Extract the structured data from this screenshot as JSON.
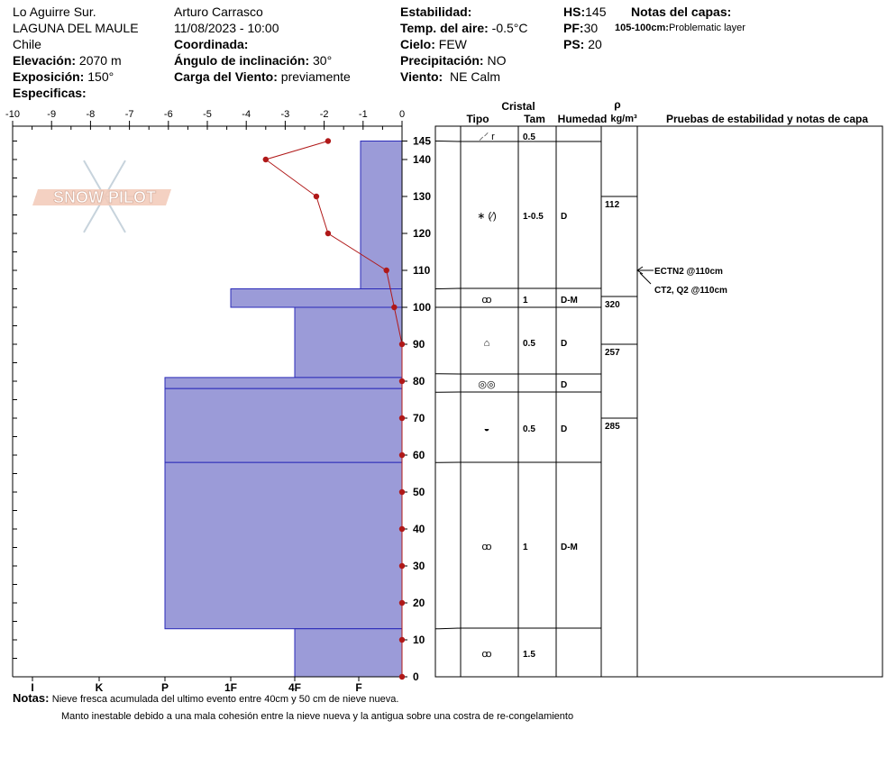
{
  "header": {
    "col1": {
      "location": "Lo Aguirre Sur.",
      "range": "LAGUNA DEL MAULE",
      "country": "Chile",
      "elevation_label": "Elevación:",
      "elevation": "2070 m",
      "aspect_label": "Exposición:",
      "aspect": "150°",
      "specifics_label": "Especificas:"
    },
    "col2": {
      "observer": "Arturo Carrasco",
      "datetime": "11/08/2023 - 10:00",
      "coord_label": "Coordinada:",
      "slope_label": "Ángulo de inclinación:",
      "slope": "30°",
      "wind_load_label": "Carga del Viento:",
      "wind_load": "previamente"
    },
    "col3": {
      "stability_label": "Estabilidad:",
      "air_temp_label": "Temp. del aire:",
      "air_temp": "-0.5°C",
      "sky_label": "Cielo:",
      "sky": "FEW",
      "precip_label": "Precipitación:",
      "precip": "NO",
      "wind_label": "Viento:",
      "wind": "NE Calm"
    },
    "col4": {
      "hs_label": "HS:",
      "hs": "145",
      "pf_label": "PF:",
      "pf": "30",
      "ps_label": "PS:",
      "ps": "20"
    },
    "layer_notes": {
      "title": "Notas del capas:",
      "range": "105-100cm:",
      "text": "Problematic layer"
    }
  },
  "logo": {
    "text": "SNOW PILOT"
  },
  "table_headers": {
    "cristal": "Cristal",
    "tipo": "Tipo",
    "tam": "Tam",
    "humedad": "Humedad",
    "rho": "ρ",
    "density_unit": "kg/m³",
    "tests": "Pruebas de estabilidad y notas de capa"
  },
  "notes": {
    "label": "Notas:",
    "line1": "Nieve fresca acumulada del ultimo evento entre 40cm  y 50 cm de nieve nueva.",
    "line2": "Manto inestable debido a una mala cohesión entre la nieve nueva y la antigua sobre una costra de re-congelamiento"
  },
  "chart_data": {
    "type": "snow-profile",
    "temperature_axis": {
      "ticks": [
        "-10",
        "-9",
        "-8",
        "-7",
        "-6",
        "-5",
        "-4",
        "-3",
        "-2",
        "-1",
        "0"
      ],
      "range": [
        -10,
        0
      ]
    },
    "hardness_axis": {
      "ticks": [
        "I",
        "K",
        "P",
        "1F",
        "4F",
        "F"
      ]
    },
    "height_axis": {
      "ticks": [
        "145",
        "140",
        "130",
        "120",
        "110",
        "100",
        "90",
        "80",
        "70",
        "60",
        "50",
        "40",
        "30",
        "20",
        "10",
        "0"
      ],
      "range": [
        0,
        145
      ]
    },
    "temperature_profile": [
      {
        "h": 145,
        "t": -1.9
      },
      {
        "h": 140,
        "t": -3.5
      },
      {
        "h": 130,
        "t": -2.2
      },
      {
        "h": 120,
        "t": -1.9
      },
      {
        "h": 110,
        "t": -0.4
      },
      {
        "h": 100,
        "t": -0.2
      },
      {
        "h": 90,
        "t": 0
      },
      {
        "h": 80,
        "t": 0
      },
      {
        "h": 70,
        "t": 0
      },
      {
        "h": 60,
        "t": 0
      },
      {
        "h": 50,
        "t": 0
      },
      {
        "h": 40,
        "t": 0
      },
      {
        "h": 30,
        "t": 0
      },
      {
        "h": 20,
        "t": 0
      },
      {
        "h": 10,
        "t": 0
      },
      {
        "h": 0,
        "t": 0
      }
    ],
    "hardness_layers": [
      {
        "top": 145,
        "bottom": 105,
        "hardness": "F"
      },
      {
        "top": 105,
        "bottom": 100,
        "hardness": "4F+"
      },
      {
        "top": 100,
        "bottom": 81,
        "hardness": "4F"
      },
      {
        "top": 81,
        "bottom": 78,
        "hardness": "P"
      },
      {
        "top": 78,
        "bottom": 58,
        "hardness": "P"
      },
      {
        "top": 58,
        "bottom": 13,
        "hardness": "P"
      },
      {
        "top": 13,
        "bottom": 0,
        "hardness": "4F"
      }
    ],
    "layers": [
      {
        "top": 145,
        "bottom": 145,
        "tipo": "⸝⸍ r",
        "tam": "0.5",
        "humedad": "",
        "density": ""
      },
      {
        "top": 145,
        "bottom": 105,
        "tipo": "∗ (⁄)",
        "tam": "1-0.5",
        "humedad": "D",
        "density": ""
      },
      {
        "top": 105,
        "bottom": 100,
        "tipo": "ꝏ",
        "tam": "1",
        "humedad": "D-M",
        "density": ""
      },
      {
        "top": 100,
        "bottom": 82,
        "tipo": "⌂",
        "tam": "0.5",
        "humedad": "D",
        "density": ""
      },
      {
        "top": 82,
        "bottom": 77,
        "tipo": "◎◎",
        "tam": "",
        "humedad": "D",
        "density": ""
      },
      {
        "top": 77,
        "bottom": 58,
        "tipo": "◒",
        "tam": "0.5",
        "humedad": "D",
        "density": ""
      },
      {
        "top": 58,
        "bottom": 13,
        "tipo": "ꝏ",
        "tam": "1",
        "humedad": "D-M",
        "density": ""
      },
      {
        "top": 13,
        "bottom": 0,
        "tipo": "ꝏ",
        "tam": "1.5",
        "humedad": "",
        "density": ""
      }
    ],
    "densities": [
      {
        "top": 130,
        "bottom": 103,
        "value": "112"
      },
      {
        "top": 103,
        "bottom": 90,
        "value": "320"
      },
      {
        "top": 90,
        "bottom": 70,
        "value": "257"
      },
      {
        "top": 70,
        "bottom": 0,
        "value": "285"
      }
    ],
    "tests": [
      {
        "h": 110,
        "text": "ECTN2 @110cm"
      },
      {
        "h": 110,
        "text": "CT2, Q2 @110cm"
      }
    ]
  }
}
